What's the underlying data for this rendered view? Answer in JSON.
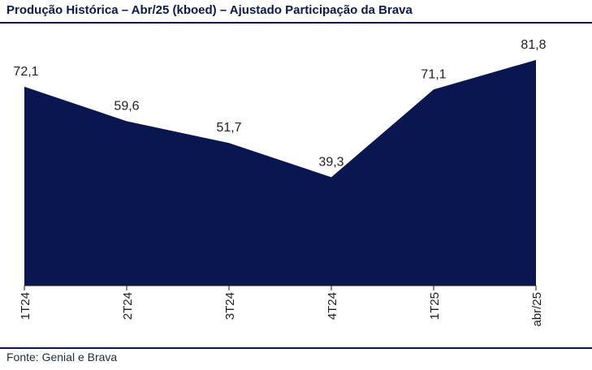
{
  "header": {
    "title": "Produção Histórica – Abr/25 (kboed) – Ajustado Participação da Brava"
  },
  "footer": {
    "source": "Fonte: Genial e Brava"
  },
  "chart_data": {
    "type": "area",
    "title": "Produção Histórica – Abr/25 (kboed) – Ajustado Participação da Brava",
    "categories": [
      "1T24",
      "2T24",
      "3T24",
      "4T24",
      "1T25",
      "abr/25"
    ],
    "series": [
      {
        "values": [
          72.1,
          59.6,
          51.7,
          39.3,
          71.1,
          81.8
        ]
      }
    ],
    "data_labels": [
      "72,1",
      "59,6",
      "51,7",
      "39,3",
      "71,1",
      "81,8"
    ],
    "ylim": [
      0,
      100
    ],
    "xlabel": "",
    "ylabel": "",
    "grid": false,
    "legend": "none",
    "colors": {
      "fill": "#0a1650",
      "axis": "#1a1a1a",
      "text": "#1f1f1f"
    }
  }
}
